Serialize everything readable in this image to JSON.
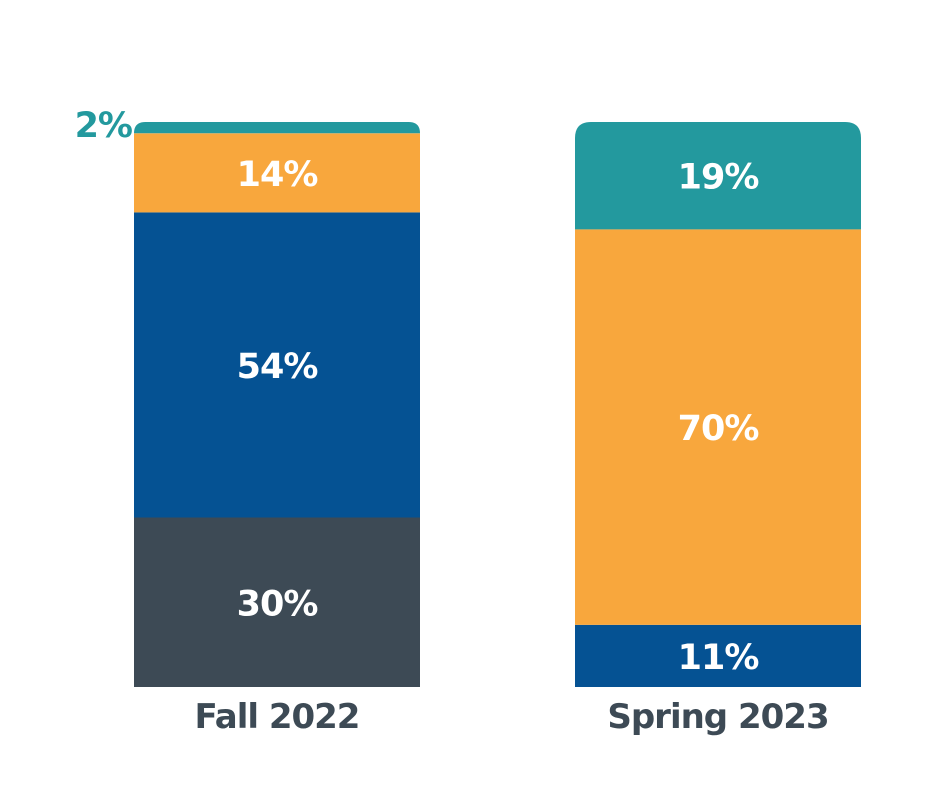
{
  "chart_data": {
    "type": "bar",
    "stacked": true,
    "normalized_percent": true,
    "categories": [
      "Fall 2022",
      "Spring 2023"
    ],
    "series": [
      {
        "key": "dark",
        "color": "#3d4a55",
        "values": [
          30,
          0
        ],
        "labels": [
          "30%",
          ""
        ]
      },
      {
        "key": "blue",
        "color": "#055293",
        "values": [
          54,
          11
        ],
        "labels": [
          "54%",
          "11%"
        ]
      },
      {
        "key": "orange",
        "color": "#f8a73d",
        "values": [
          14,
          70
        ],
        "labels": [
          "14%",
          "70%"
        ]
      },
      {
        "key": "teal",
        "color": "#23999e",
        "values": [
          2,
          19
        ],
        "labels": [
          "2%",
          "19%"
        ]
      }
    ],
    "ylim": [
      0,
      100
    ],
    "grid": false,
    "legend": "none",
    "title": "",
    "xlabel": "",
    "ylabel": "",
    "category_label_color": "#3d4a55",
    "segment_label_color": "#ffffff",
    "small_segment_label_color": "#23999e"
  }
}
